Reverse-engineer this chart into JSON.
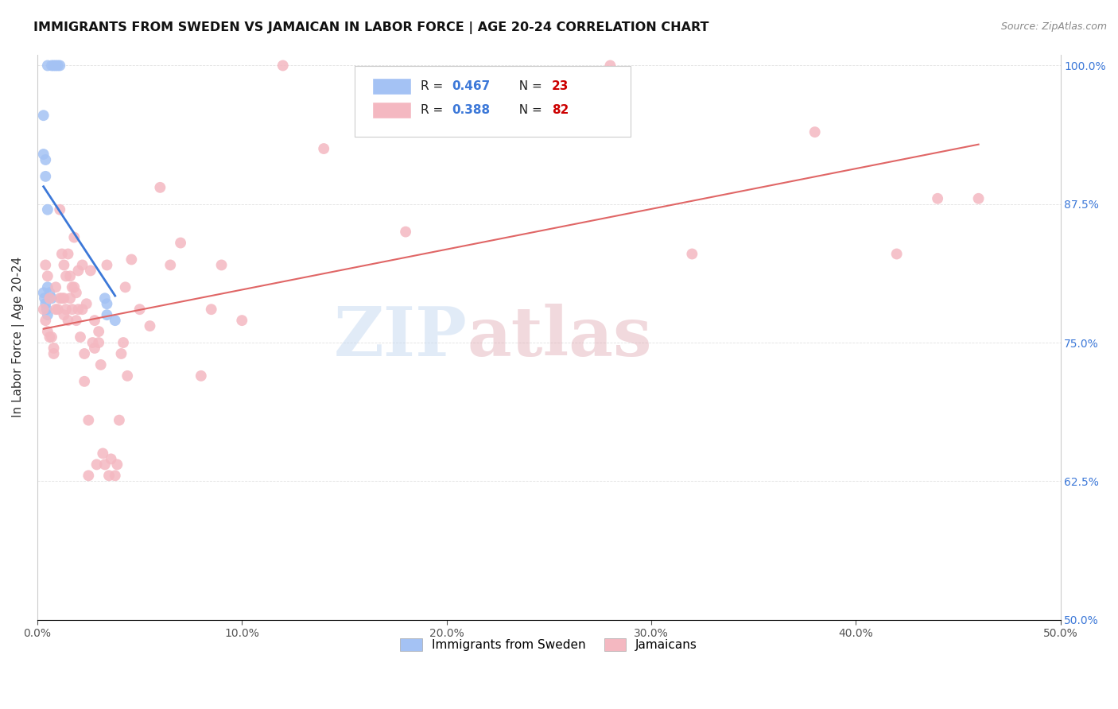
{
  "title": "IMMIGRANTS FROM SWEDEN VS JAMAICAN IN LABOR FORCE | AGE 20-24 CORRELATION CHART",
  "source": "Source: ZipAtlas.com",
  "ylabel": "In Labor Force | Age 20-24",
  "watermark_zip": "ZIP",
  "watermark_atlas": "atlas",
  "xmin": 0.0,
  "xmax": 50.0,
  "ymin": 50.0,
  "ymax": 101.0,
  "xticks": [
    0.0,
    10.0,
    20.0,
    30.0,
    40.0,
    50.0
  ],
  "xtick_labels": [
    "0.0%",
    "10.0%",
    "20.0%",
    "30.0%",
    "40.0%",
    "50.0%"
  ],
  "yticks": [
    50.0,
    62.5,
    75.0,
    87.5,
    100.0
  ],
  "ytick_labels": [
    "50.0%",
    "62.5%",
    "75.0%",
    "87.5%",
    "100.0%"
  ],
  "sweden_R": "0.467",
  "sweden_N": "23",
  "jamaica_R": "0.388",
  "jamaica_N": "82",
  "sweden_color": "#a4c2f4",
  "jamaica_color": "#f4b8c1",
  "sweden_line_color": "#3c78d8",
  "jamaica_line_color": "#e06666",
  "right_ytick_color": "#3c78d8",
  "legend_R_color": "#3c78d8",
  "legend_N_color": "#cc0000",
  "sweden_points_x": [
    0.5,
    0.7,
    0.8,
    0.9,
    1.0,
    1.1,
    0.3,
    0.3,
    0.4,
    0.4,
    0.5,
    0.5,
    0.6,
    0.7,
    0.3,
    0.35,
    0.4,
    0.45,
    0.5,
    3.3,
    3.4,
    3.4,
    3.8
  ],
  "sweden_points_y": [
    100.0,
    100.0,
    100.0,
    100.0,
    100.0,
    100.0,
    95.5,
    92.0,
    91.5,
    90.0,
    87.0,
    80.0,
    79.5,
    79.0,
    79.5,
    79.0,
    78.5,
    78.0,
    77.5,
    79.0,
    78.5,
    77.5,
    77.0
  ],
  "jamaica_points_x": [
    0.3,
    0.4,
    0.5,
    0.6,
    0.4,
    0.5,
    0.6,
    0.7,
    0.8,
    0.8,
    0.9,
    0.9,
    1.0,
    1.1,
    1.1,
    1.2,
    1.2,
    1.3,
    1.3,
    1.3,
    1.4,
    1.4,
    1.5,
    1.5,
    1.6,
    1.6,
    1.7,
    1.7,
    1.8,
    1.8,
    1.9,
    1.9,
    2.0,
    2.0,
    2.1,
    2.2,
    2.2,
    2.3,
    2.3,
    2.4,
    2.5,
    2.5,
    2.6,
    2.7,
    2.8,
    2.8,
    2.9,
    3.0,
    3.0,
    3.1,
    3.2,
    3.3,
    3.4,
    3.5,
    3.6,
    3.8,
    3.9,
    4.0,
    4.1,
    4.2,
    4.3,
    4.4,
    4.6,
    5.0,
    5.5,
    6.0,
    6.5,
    7.0,
    8.0,
    8.5,
    9.0,
    10.0,
    12.0,
    14.0,
    18.0,
    23.0,
    28.0,
    32.0,
    38.0,
    42.0,
    44.0,
    46.0
  ],
  "jamaica_points_y": [
    78.0,
    77.0,
    76.0,
    75.5,
    82.0,
    81.0,
    79.0,
    75.5,
    74.5,
    74.0,
    80.0,
    78.0,
    78.0,
    87.0,
    79.0,
    83.0,
    79.0,
    82.0,
    79.0,
    77.5,
    81.0,
    78.0,
    83.0,
    77.0,
    81.0,
    79.0,
    80.0,
    78.0,
    84.5,
    80.0,
    79.5,
    77.0,
    81.5,
    78.0,
    75.5,
    82.0,
    78.0,
    74.0,
    71.5,
    78.5,
    68.0,
    63.0,
    81.5,
    75.0,
    77.0,
    74.5,
    64.0,
    76.0,
    75.0,
    73.0,
    65.0,
    64.0,
    82.0,
    63.0,
    64.5,
    63.0,
    64.0,
    68.0,
    74.0,
    75.0,
    80.0,
    72.0,
    82.5,
    78.0,
    76.5,
    89.0,
    82.0,
    84.0,
    72.0,
    78.0,
    82.0,
    77.0,
    100.0,
    92.5,
    85.0,
    95.0,
    100.0,
    83.0,
    94.0,
    83.0,
    88.0,
    88.0
  ]
}
